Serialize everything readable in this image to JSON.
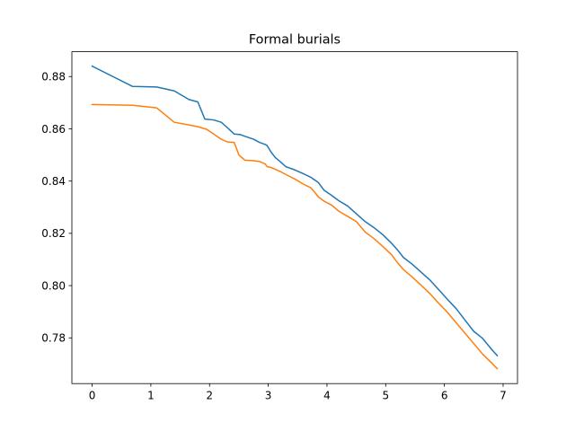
{
  "chart_data": {
    "type": "line",
    "title": "Formal burials",
    "xlabel": "",
    "ylabel": "",
    "xlim": [
      -0.345,
      7.245
    ],
    "ylim": [
      0.7625,
      0.8895
    ],
    "xticks": [
      0,
      1,
      2,
      3,
      4,
      5,
      6,
      7
    ],
    "xtick_labels": [
      "0",
      "1",
      "2",
      "3",
      "4",
      "5",
      "6",
      "7"
    ],
    "yticks": [
      0.78,
      0.8,
      0.82,
      0.84,
      0.86,
      0.88
    ],
    "ytick_labels": [
      "0.78",
      "0.80",
      "0.82",
      "0.84",
      "0.86",
      "0.88"
    ],
    "grid": false,
    "series": [
      {
        "color": "#1f77b4",
        "x": [
          0,
          0.69,
          1.1,
          1.4,
          1.65,
          1.8,
          1.92,
          2.07,
          2.2,
          2.3,
          2.42,
          2.52,
          2.62,
          2.75,
          2.85,
          2.95,
          2.98,
          3.05,
          3.12,
          3.2,
          3.3,
          3.45,
          3.6,
          3.72,
          3.85,
          3.95,
          4.08,
          4.2,
          4.35,
          4.5,
          4.65,
          4.8,
          4.95,
          5.1,
          5.2,
          5.3,
          5.45,
          5.6,
          5.75,
          5.9,
          6.05,
          6.2,
          6.35,
          6.5,
          6.65,
          6.8,
          6.9
        ],
        "y": [
          0.884,
          0.8762,
          0.876,
          0.8745,
          0.8712,
          0.8703,
          0.8637,
          0.8634,
          0.8625,
          0.8605,
          0.858,
          0.8578,
          0.857,
          0.856,
          0.8548,
          0.854,
          0.8536,
          0.851,
          0.849,
          0.8475,
          0.8455,
          0.8443,
          0.8428,
          0.8415,
          0.8395,
          0.8365,
          0.8345,
          0.8325,
          0.8305,
          0.8275,
          0.8245,
          0.8222,
          0.8195,
          0.8162,
          0.8137,
          0.8108,
          0.8082,
          0.8052,
          0.8022,
          0.7985,
          0.7948,
          0.7912,
          0.7868,
          0.7825,
          0.7798,
          0.7757,
          0.7732
        ]
      },
      {
        "color": "#ff7f0e",
        "x": [
          0,
          0.69,
          1.1,
          1.4,
          1.65,
          1.8,
          1.95,
          2.07,
          2.2,
          2.3,
          2.42,
          2.5,
          2.6,
          2.75,
          2.85,
          2.95,
          2.98,
          3.05,
          3.12,
          3.2,
          3.3,
          3.45,
          3.6,
          3.72,
          3.8,
          3.85,
          3.95,
          4.08,
          4.2,
          4.35,
          4.5,
          4.65,
          4.8,
          4.95,
          5.1,
          5.2,
          5.3,
          5.45,
          5.6,
          5.75,
          5.9,
          6.05,
          6.2,
          6.35,
          6.5,
          6.65,
          6.8,
          6.9
        ],
        "y": [
          0.8693,
          0.869,
          0.868,
          0.8625,
          0.8615,
          0.8608,
          0.8598,
          0.858,
          0.856,
          0.855,
          0.8548,
          0.85,
          0.848,
          0.8478,
          0.8475,
          0.8465,
          0.8455,
          0.8452,
          0.8445,
          0.8437,
          0.8425,
          0.8408,
          0.8388,
          0.8375,
          0.8355,
          0.834,
          0.8323,
          0.8308,
          0.8285,
          0.8265,
          0.8245,
          0.8205,
          0.818,
          0.815,
          0.8118,
          0.8088,
          0.8062,
          0.8033,
          0.8002,
          0.797,
          0.7933,
          0.7898,
          0.7858,
          0.7818,
          0.7778,
          0.7738,
          0.7705,
          0.7682
        ]
      }
    ]
  }
}
